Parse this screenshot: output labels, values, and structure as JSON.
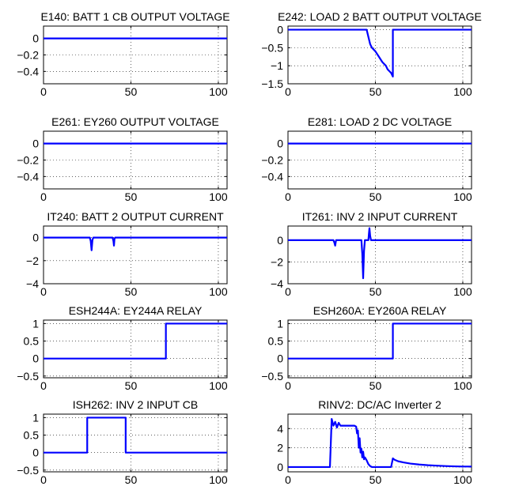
{
  "figure": {
    "line_color": "#0000ff"
  },
  "chart_data": [
    {
      "type": "line",
      "title": "E140: BATT 1 CB OUTPUT VOLTAGE",
      "xlim": [
        0,
        105
      ],
      "ylim": [
        -0.55,
        0.15
      ],
      "xticks": [
        0,
        50,
        100
      ],
      "xtick_labels": [
        "0",
        "50",
        "100"
      ],
      "yticks": [
        0,
        -0.2,
        -0.4
      ],
      "ytick_labels": [
        "0",
        "−0.2",
        "−0.4"
      ],
      "grid": true,
      "series": [
        {
          "x": [
            0,
            105
          ],
          "y": [
            0,
            0
          ]
        }
      ]
    },
    {
      "type": "line",
      "title": "E242: LOAD 2 BATT OUTPUT VOLTAGE",
      "xlim": [
        0,
        105
      ],
      "ylim": [
        -1.5,
        0.1
      ],
      "xticks": [
        0,
        50,
        100
      ],
      "xtick_labels": [
        "0",
        "50",
        "100"
      ],
      "yticks": [
        0,
        -0.5,
        -1,
        -1.5
      ],
      "ytick_labels": [
        "0",
        "−0.5",
        "−1",
        "−1.5"
      ],
      "grid": true,
      "series": [
        {
          "x": [
            0,
            45,
            47,
            48,
            50,
            52,
            54,
            56,
            57,
            58,
            59,
            59.5,
            60,
            60,
            105
          ],
          "y": [
            0,
            0,
            -0.4,
            -0.5,
            -0.6,
            -0.75,
            -0.9,
            -1.0,
            -1.1,
            -1.15,
            -1.2,
            -1.25,
            -1.3,
            0,
            0
          ]
        }
      ]
    },
    {
      "type": "line",
      "title": "E261: EY260 OUTPUT VOLTAGE",
      "xlim": [
        0,
        105
      ],
      "ylim": [
        -0.55,
        0.15
      ],
      "xticks": [
        0,
        50,
        100
      ],
      "xtick_labels": [
        "0",
        "50",
        "100"
      ],
      "yticks": [
        0,
        -0.2,
        -0.4
      ],
      "ytick_labels": [
        "0",
        "−0.2",
        "−0.4"
      ],
      "grid": true,
      "series": [
        {
          "x": [
            0,
            105
          ],
          "y": [
            0,
            0
          ]
        }
      ]
    },
    {
      "type": "line",
      "title": "E281: LOAD 2 DC VOLTAGE",
      "xlim": [
        0,
        105
      ],
      "ylim": [
        -0.55,
        0.15
      ],
      "xticks": [
        0,
        50,
        100
      ],
      "xtick_labels": [
        "0",
        "50",
        "100"
      ],
      "yticks": [
        0,
        -0.2,
        -0.4
      ],
      "ytick_labels": [
        "0",
        "−0.2",
        "−0.4"
      ],
      "grid": true,
      "series": [
        {
          "x": [
            0,
            105
          ],
          "y": [
            0,
            0
          ]
        }
      ]
    },
    {
      "type": "line",
      "title": "IT240: BATT 2 OUTPUT CURRENT",
      "xlim": [
        0,
        105
      ],
      "ylim": [
        -4,
        1
      ],
      "xticks": [
        0,
        50,
        100
      ],
      "xtick_labels": [
        "0",
        "50",
        "100"
      ],
      "yticks": [
        0,
        -2,
        -4
      ],
      "ytick_labels": [
        "0",
        "−2",
        "−4"
      ],
      "grid": true,
      "series": [
        {
          "x": [
            0,
            26.5,
            27,
            27.5,
            28,
            28.5,
            39.5,
            40,
            40.3,
            40.6,
            41,
            105
          ],
          "y": [
            0,
            0,
            -0.3,
            -1.1,
            -0.2,
            0,
            0,
            -0.3,
            -0.7,
            -0.1,
            0,
            0
          ]
        }
      ]
    },
    {
      "type": "line",
      "title": "IT261: INV 2 INPUT CURRENT",
      "xlim": [
        0,
        105
      ],
      "ylim": [
        -4,
        1.3
      ],
      "xticks": [
        0,
        50,
        100
      ],
      "xtick_labels": [
        "0",
        "50",
        "100"
      ],
      "yticks": [
        0,
        -2,
        -4
      ],
      "ytick_labels": [
        "0",
        "−2",
        "−4"
      ],
      "grid": true,
      "series": [
        {
          "x": [
            0,
            26,
            26.5,
            27,
            27.5,
            42,
            42.5,
            43,
            43.5,
            44,
            46,
            46.3,
            46.6,
            47,
            47.5,
            105
          ],
          "y": [
            0,
            0,
            -0.2,
            -0.5,
            0,
            0,
            -1.2,
            -3.5,
            -1.0,
            0,
            0,
            0.6,
            1.1,
            0.4,
            0,
            0
          ]
        }
      ]
    },
    {
      "type": "line",
      "title": "ESH244A: EY244A RELAY",
      "xlim": [
        0,
        105
      ],
      "ylim": [
        -0.55,
        1.1
      ],
      "xticks": [
        0,
        50,
        100
      ],
      "xtick_labels": [
        "0",
        "50",
        "100"
      ],
      "yticks": [
        1,
        0.5,
        0,
        -0.5
      ],
      "ytick_labels": [
        "1",
        "0.5",
        "0",
        "−0.5"
      ],
      "grid": true,
      "series": [
        {
          "x": [
            0,
            70,
            70,
            105
          ],
          "y": [
            0,
            0,
            1,
            1
          ]
        }
      ]
    },
    {
      "type": "line",
      "title": "ESH260A: EY260A RELAY",
      "xlim": [
        0,
        105
      ],
      "ylim": [
        -0.55,
        1.1
      ],
      "xticks": [
        0,
        50,
        100
      ],
      "xtick_labels": [
        "0",
        "50",
        "100"
      ],
      "yticks": [
        1,
        0.5,
        0,
        -0.5
      ],
      "ytick_labels": [
        "1",
        "0.5",
        "0",
        "−0.5"
      ],
      "grid": true,
      "series": [
        {
          "x": [
            0,
            60,
            60,
            105
          ],
          "y": [
            0,
            0,
            1,
            1
          ]
        }
      ]
    },
    {
      "type": "line",
      "title": "ISH262: INV 2 INPUT CB",
      "xlim": [
        0,
        105
      ],
      "ylim": [
        -0.55,
        1.1
      ],
      "xticks": [
        0,
        50,
        100
      ],
      "xtick_labels": [
        "0",
        "50",
        "100"
      ],
      "yticks": [
        1,
        0.5,
        0,
        -0.5
      ],
      "ytick_labels": [
        "1",
        "0.5",
        "0",
        "−0.5"
      ],
      "grid": true,
      "series": [
        {
          "x": [
            0,
            25,
            25,
            47,
            47,
            105
          ],
          "y": [
            0,
            0,
            1,
            1,
            0,
            0
          ]
        }
      ]
    },
    {
      "type": "line",
      "title": "RINV2: DC/AC Inverter 2",
      "xlim": [
        0,
        105
      ],
      "ylim": [
        -0.5,
        5.5
      ],
      "xticks": [
        0,
        50,
        100
      ],
      "xtick_labels": [
        "0",
        "50",
        "100"
      ],
      "yticks": [
        4,
        2,
        0
      ],
      "ytick_labels": [
        "4",
        "2",
        "0"
      ],
      "grid": true,
      "series": [
        {
          "x": [
            0,
            24,
            25,
            26,
            27,
            28,
            29,
            30,
            31,
            32,
            34,
            36,
            38,
            39,
            39.5,
            40,
            40.5,
            41,
            41.5,
            42,
            42.5,
            43,
            43.5,
            44,
            45,
            46,
            47,
            48,
            59,
            60,
            61,
            63,
            66,
            70,
            75,
            80,
            85,
            90,
            95,
            100,
            105
          ],
          "y": [
            0,
            0,
            5.0,
            4.3,
            4.7,
            4.1,
            4.6,
            4.3,
            4.3,
            4.3,
            4.3,
            4.3,
            4.3,
            4.2,
            3.5,
            3.8,
            2.0,
            3.0,
            1.5,
            1.9,
            1.0,
            1.6,
            0.8,
            1.0,
            0.7,
            0.3,
            0.1,
            0,
            0,
            0.9,
            0.75,
            0.6,
            0.48,
            0.36,
            0.26,
            0.19,
            0.14,
            0.1,
            0.07,
            0.05,
            0.05
          ]
        }
      ]
    }
  ]
}
